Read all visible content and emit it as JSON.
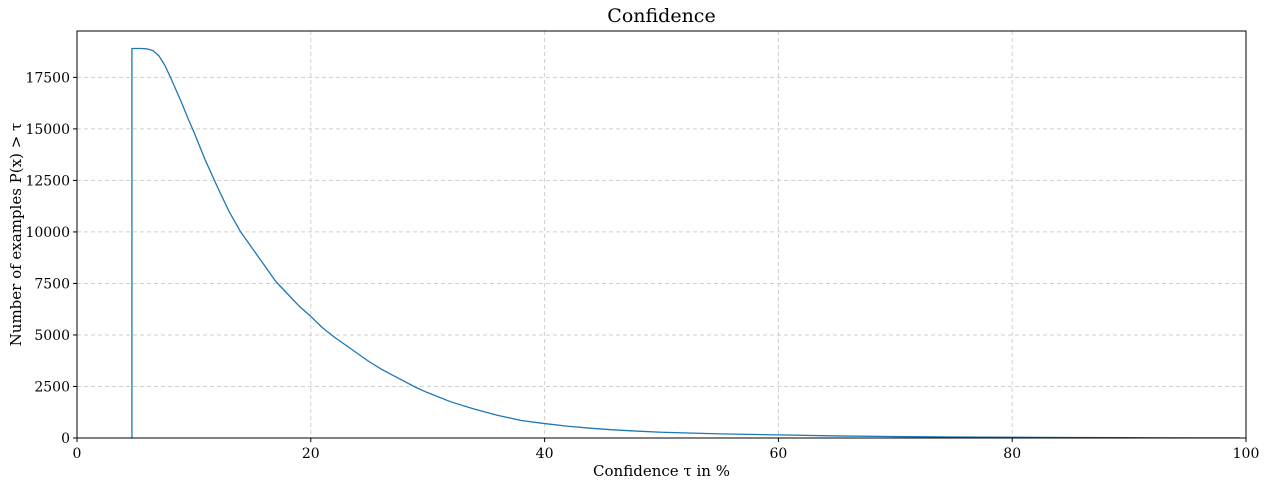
{
  "chart_data": {
    "type": "line",
    "title": "Confidence",
    "xlabel": "Confidence τ in %",
    "ylabel": "Number of examples P(x) > τ",
    "xlim": [
      0,
      100
    ],
    "ylim": [
      0,
      19750
    ],
    "xticks": [
      0,
      20,
      40,
      60,
      80,
      100
    ],
    "xtick_labels": [
      "0",
      "20",
      "40",
      "60",
      "80",
      "100"
    ],
    "yticks": [
      0,
      2500,
      5000,
      7500,
      10000,
      12500,
      15000,
      17500
    ],
    "ytick_labels": [
      "0",
      "2500",
      "5000",
      "7500",
      "10000",
      "12500",
      "15000",
      "17500"
    ],
    "grid": true,
    "series": [
      {
        "color": "#1f77b4",
        "x": [
          4.7,
          4.7,
          5.5,
          6,
          6.5,
          7,
          7.5,
          8,
          8.5,
          9,
          9.5,
          10,
          11,
          12,
          13,
          14,
          15,
          16,
          17,
          18,
          19,
          20,
          21,
          22,
          23,
          24,
          25,
          26,
          27,
          28,
          29,
          30,
          32,
          34,
          36,
          38,
          40,
          42,
          44,
          46,
          48,
          50,
          55,
          60,
          65,
          70,
          75,
          80,
          85,
          90,
          95,
          99.5
        ],
        "y": [
          0,
          18900,
          18900,
          18880,
          18800,
          18550,
          18100,
          17500,
          16850,
          16200,
          15500,
          14850,
          13450,
          12200,
          11000,
          10000,
          9200,
          8400,
          7600,
          7000,
          6400,
          5900,
          5350,
          4900,
          4500,
          4100,
          3700,
          3350,
          3050,
          2750,
          2450,
          2200,
          1750,
          1400,
          1100,
          850,
          700,
          570,
          470,
          390,
          330,
          280,
          200,
          150,
          100,
          70,
          50,
          35,
          25,
          15,
          8,
          5
        ]
      }
    ]
  }
}
